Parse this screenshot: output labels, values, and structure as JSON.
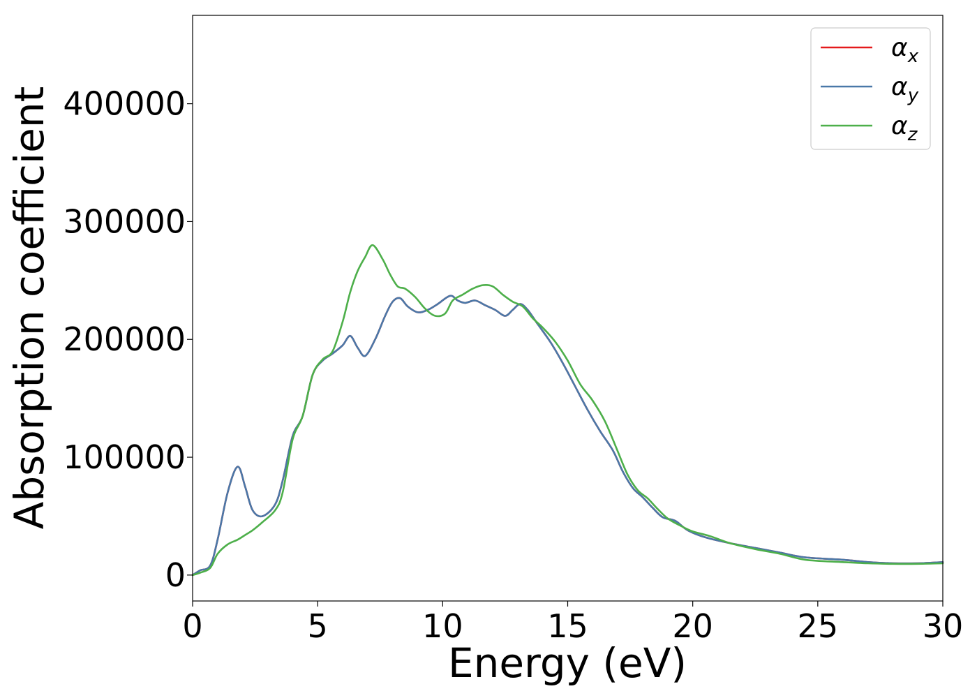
{
  "chart_data": {
    "type": "line",
    "title": "",
    "xlabel": "Energy (eV)",
    "ylabel": "Absorption coefficient",
    "xlim": [
      0,
      30
    ],
    "ylim": [
      -22000,
      475000
    ],
    "xticks": [
      "0",
      "5",
      "10",
      "15",
      "20",
      "25",
      "30"
    ],
    "xtick_values": [
      0,
      5,
      10,
      15,
      20,
      25,
      30
    ],
    "yticks": [
      "0",
      "100000",
      "200000",
      "300000",
      "400000"
    ],
    "ytick_values": [
      0,
      100000,
      200000,
      300000,
      400000
    ],
    "grid": false,
    "legend_position": "top-right",
    "series": [
      {
        "name": "αx",
        "name_base": "α",
        "name_sub": "x",
        "color": "#e41a1c",
        "x": [
          0,
          0.3,
          0.7,
          1.0,
          1.4,
          1.8,
          2.1,
          2.4,
          2.8,
          3.3,
          3.6,
          4.0,
          4.4,
          4.8,
          5.2,
          5.6,
          6.0,
          6.3,
          6.6,
          6.9,
          7.3,
          7.7,
          8.0,
          8.3,
          8.6,
          9.0,
          9.4,
          9.8,
          10.3,
          10.6,
          10.9,
          11.3,
          11.7,
          12.1,
          12.5,
          12.8,
          13.1,
          13.4,
          13.8,
          14.3,
          14.8,
          15.3,
          15.8,
          16.3,
          16.8,
          17.2,
          17.6,
          18.0,
          18.4,
          18.8,
          19.3,
          19.8,
          20.5,
          21.5,
          22.5,
          23.5,
          24.5,
          26.0,
          27.0,
          28.0,
          29.0,
          30.0
        ],
        "y": [
          0,
          4000,
          8000,
          30000,
          70000,
          92000,
          75000,
          55000,
          50000,
          60000,
          80000,
          118000,
          135000,
          170000,
          182000,
          188000,
          195000,
          203000,
          193000,
          186000,
          200000,
          220000,
          232000,
          235000,
          228000,
          223000,
          225000,
          230000,
          237000,
          233000,
          231000,
          233000,
          229000,
          225000,
          220000,
          225000,
          230000,
          225000,
          213000,
          198000,
          180000,
          160000,
          140000,
          122000,
          106000,
          88000,
          74000,
          66000,
          57000,
          49000,
          46000,
          38000,
          32000,
          27000,
          23000,
          19000,
          15000,
          13000,
          11000,
          10000,
          10000,
          11000
        ]
      },
      {
        "name": "αy",
        "name_base": "α",
        "name_sub": "y",
        "color": "#4a78a8",
        "x": [
          0,
          0.3,
          0.7,
          1.0,
          1.4,
          1.8,
          2.1,
          2.4,
          2.8,
          3.3,
          3.6,
          4.0,
          4.4,
          4.8,
          5.2,
          5.6,
          6.0,
          6.3,
          6.6,
          6.9,
          7.3,
          7.7,
          8.0,
          8.3,
          8.6,
          9.0,
          9.4,
          9.8,
          10.3,
          10.6,
          10.9,
          11.3,
          11.7,
          12.1,
          12.5,
          12.8,
          13.1,
          13.4,
          13.8,
          14.3,
          14.8,
          15.3,
          15.8,
          16.3,
          16.8,
          17.2,
          17.6,
          18.0,
          18.4,
          18.8,
          19.3,
          19.8,
          20.5,
          21.5,
          22.5,
          23.5,
          24.5,
          26.0,
          27.0,
          28.0,
          29.0,
          30.0
        ],
        "y": [
          0,
          4000,
          8000,
          30000,
          70000,
          92000,
          75000,
          55000,
          50000,
          60000,
          80000,
          118000,
          135000,
          170000,
          182000,
          188000,
          195000,
          203000,
          193000,
          186000,
          200000,
          220000,
          232000,
          235000,
          228000,
          223000,
          225000,
          230000,
          237000,
          233000,
          231000,
          233000,
          229000,
          225000,
          220000,
          225000,
          230000,
          225000,
          213000,
          198000,
          180000,
          160000,
          140000,
          122000,
          106000,
          88000,
          74000,
          66000,
          57000,
          49000,
          46000,
          38000,
          32000,
          27000,
          23000,
          19000,
          15000,
          13000,
          11000,
          10000,
          10000,
          11000
        ]
      },
      {
        "name": "αz",
        "name_base": "α",
        "name_sub": "z",
        "color": "#4daf4a",
        "x": [
          0,
          0.3,
          0.7,
          1.0,
          1.4,
          1.8,
          2.1,
          2.4,
          2.8,
          3.3,
          3.6,
          4.0,
          4.4,
          4.8,
          5.2,
          5.6,
          6.0,
          6.3,
          6.6,
          6.9,
          7.2,
          7.6,
          7.9,
          8.2,
          8.5,
          8.9,
          9.3,
          9.7,
          10.1,
          10.4,
          10.8,
          11.2,
          11.6,
          12.0,
          12.4,
          12.8,
          13.2,
          13.6,
          14.0,
          14.5,
          15.0,
          15.5,
          16.0,
          16.5,
          17.0,
          17.4,
          17.8,
          18.2,
          18.6,
          19.0,
          19.5,
          20.0,
          20.7,
          21.5,
          22.5,
          23.5,
          24.5,
          26.0,
          27.0,
          28.0,
          29.0,
          30.0
        ],
        "y": [
          0,
          2000,
          6000,
          18000,
          26000,
          30000,
          34000,
          38000,
          45000,
          55000,
          70000,
          115000,
          135000,
          170000,
          183000,
          190000,
          215000,
          240000,
          258000,
          270000,
          280000,
          268000,
          255000,
          245000,
          243000,
          236000,
          226000,
          220000,
          222000,
          233000,
          238000,
          243000,
          246000,
          245000,
          238000,
          232000,
          228000,
          218000,
          210000,
          198000,
          182000,
          162000,
          148000,
          130000,
          105000,
          85000,
          72000,
          65000,
          56000,
          48000,
          42000,
          37000,
          33000,
          27000,
          22000,
          18000,
          13000,
          11000,
          10000,
          9500,
          9500,
          10000
        ]
      }
    ]
  }
}
